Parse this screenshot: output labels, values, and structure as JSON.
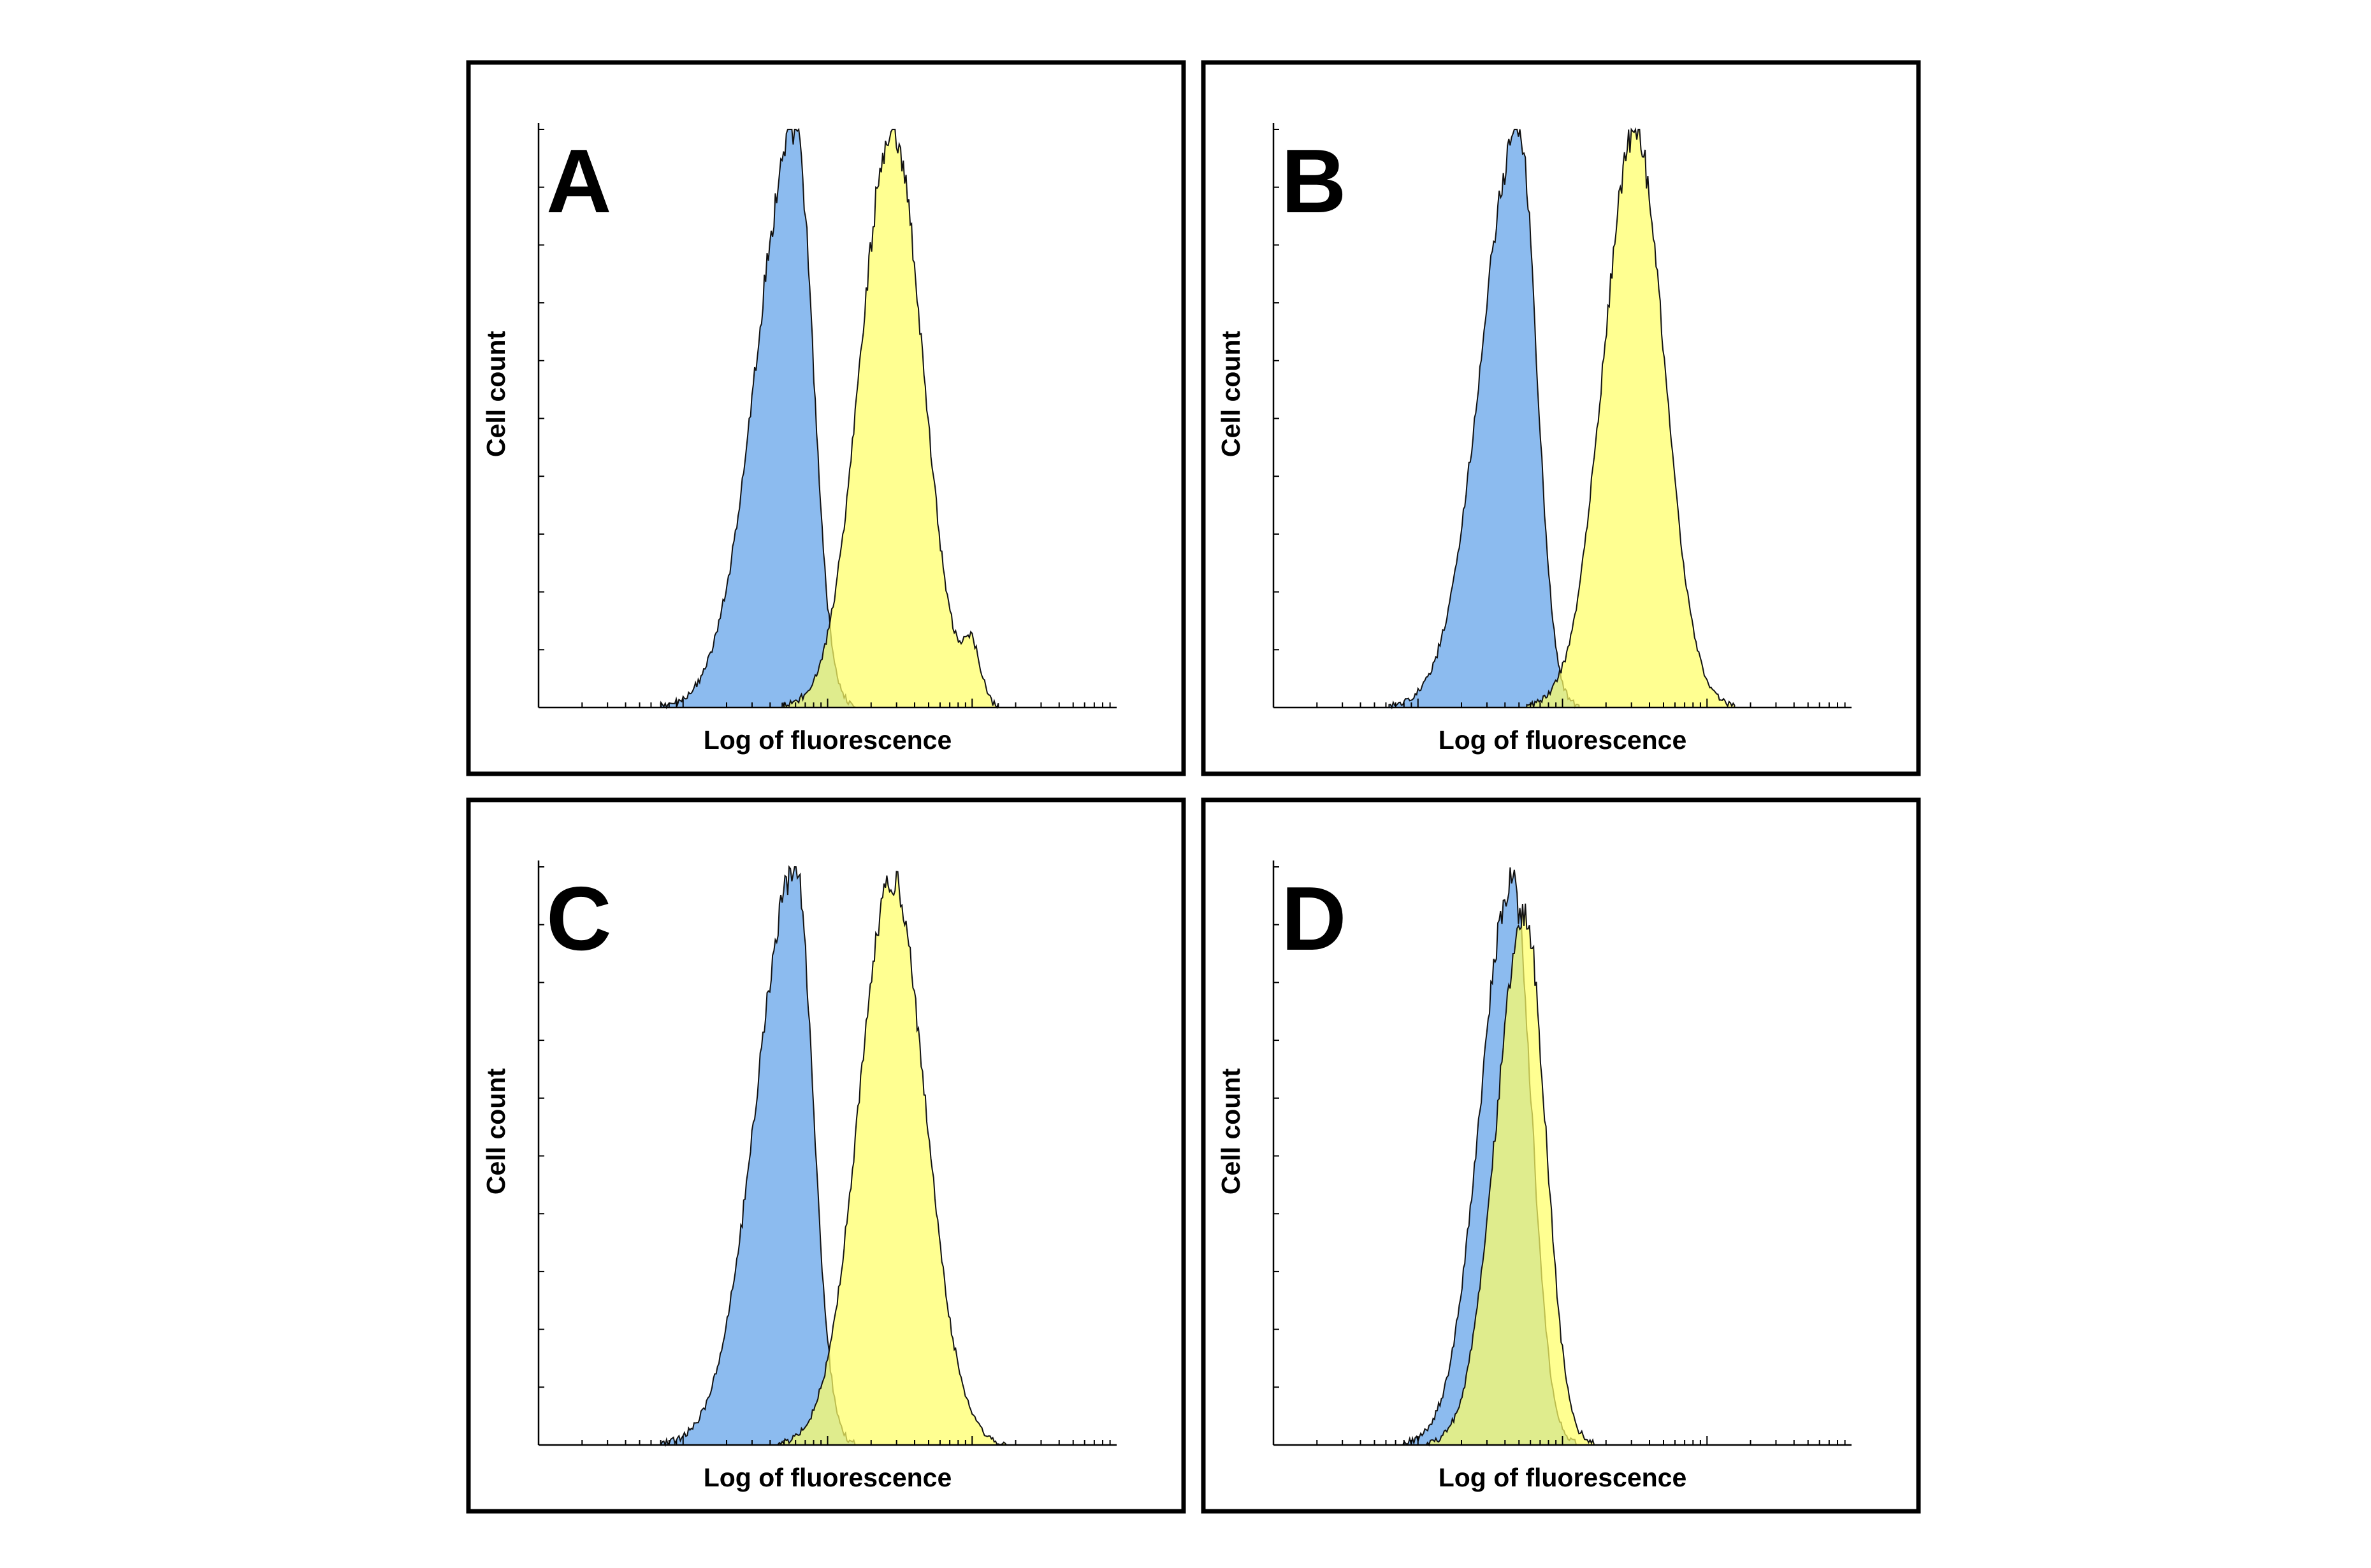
{
  "chart_data": [
    {
      "type": "area",
      "panel_label": "A",
      "xlabel": "Log of fluorescence",
      "ylabel": "Cell count",
      "x_scale": "log",
      "xlim": [
        1,
        10000
      ],
      "ylim": [
        0,
        100
      ],
      "legend": "none",
      "series": [
        {
          "color": "#8cbbef",
          "peak_x": 60,
          "peak_y": 100,
          "width_left": 0.27,
          "width_right": 0.12
        },
        {
          "color": "#ffff66",
          "peak_x": 280,
          "peak_y": 100,
          "width_left": 0.22,
          "width_right": 0.21,
          "shoulder_x": 1000,
          "shoulder_y": 9
        }
      ]
    },
    {
      "type": "area",
      "panel_label": "B",
      "xlabel": "Log of fluorescence",
      "ylabel": "Cell count",
      "x_scale": "log",
      "xlim": [
        1,
        10000
      ],
      "ylim": [
        0,
        100
      ],
      "legend": "none",
      "series": [
        {
          "color": "#8cbbef",
          "peak_x": 50,
          "peak_y": 100,
          "width_left": 0.26,
          "width_right": 0.12
        },
        {
          "color": "#ffff66",
          "peak_x": 320,
          "peak_y": 100,
          "width_left": 0.22,
          "width_right": 0.2
        }
      ]
    },
    {
      "type": "area",
      "panel_label": "C",
      "xlabel": "Log of fluorescence",
      "ylabel": "Cell count",
      "x_scale": "log",
      "xlim": [
        1,
        10000
      ],
      "ylim": [
        0,
        100
      ],
      "legend": "none",
      "series": [
        {
          "color": "#8cbbef",
          "peak_x": 60,
          "peak_y": 100,
          "width_left": 0.27,
          "width_right": 0.12
        },
        {
          "color": "#ffff66",
          "peak_x": 280,
          "peak_y": 98,
          "width_left": 0.23,
          "width_right": 0.23
        }
      ]
    },
    {
      "type": "area",
      "panel_label": "D",
      "xlabel": "Log of fluorescence",
      "ylabel": "Cell count",
      "x_scale": "log",
      "xlim": [
        1,
        10000
      ],
      "ylim": [
        0,
        100
      ],
      "legend": "none",
      "series": [
        {
          "color": "#8cbbef",
          "peak_x": 45,
          "peak_y": 98,
          "width_left": 0.22,
          "width_right": 0.13
        },
        {
          "color": "#ffff66",
          "peak_x": 55,
          "peak_y": 92,
          "width_left": 0.2,
          "width_right": 0.14
        }
      ]
    }
  ]
}
